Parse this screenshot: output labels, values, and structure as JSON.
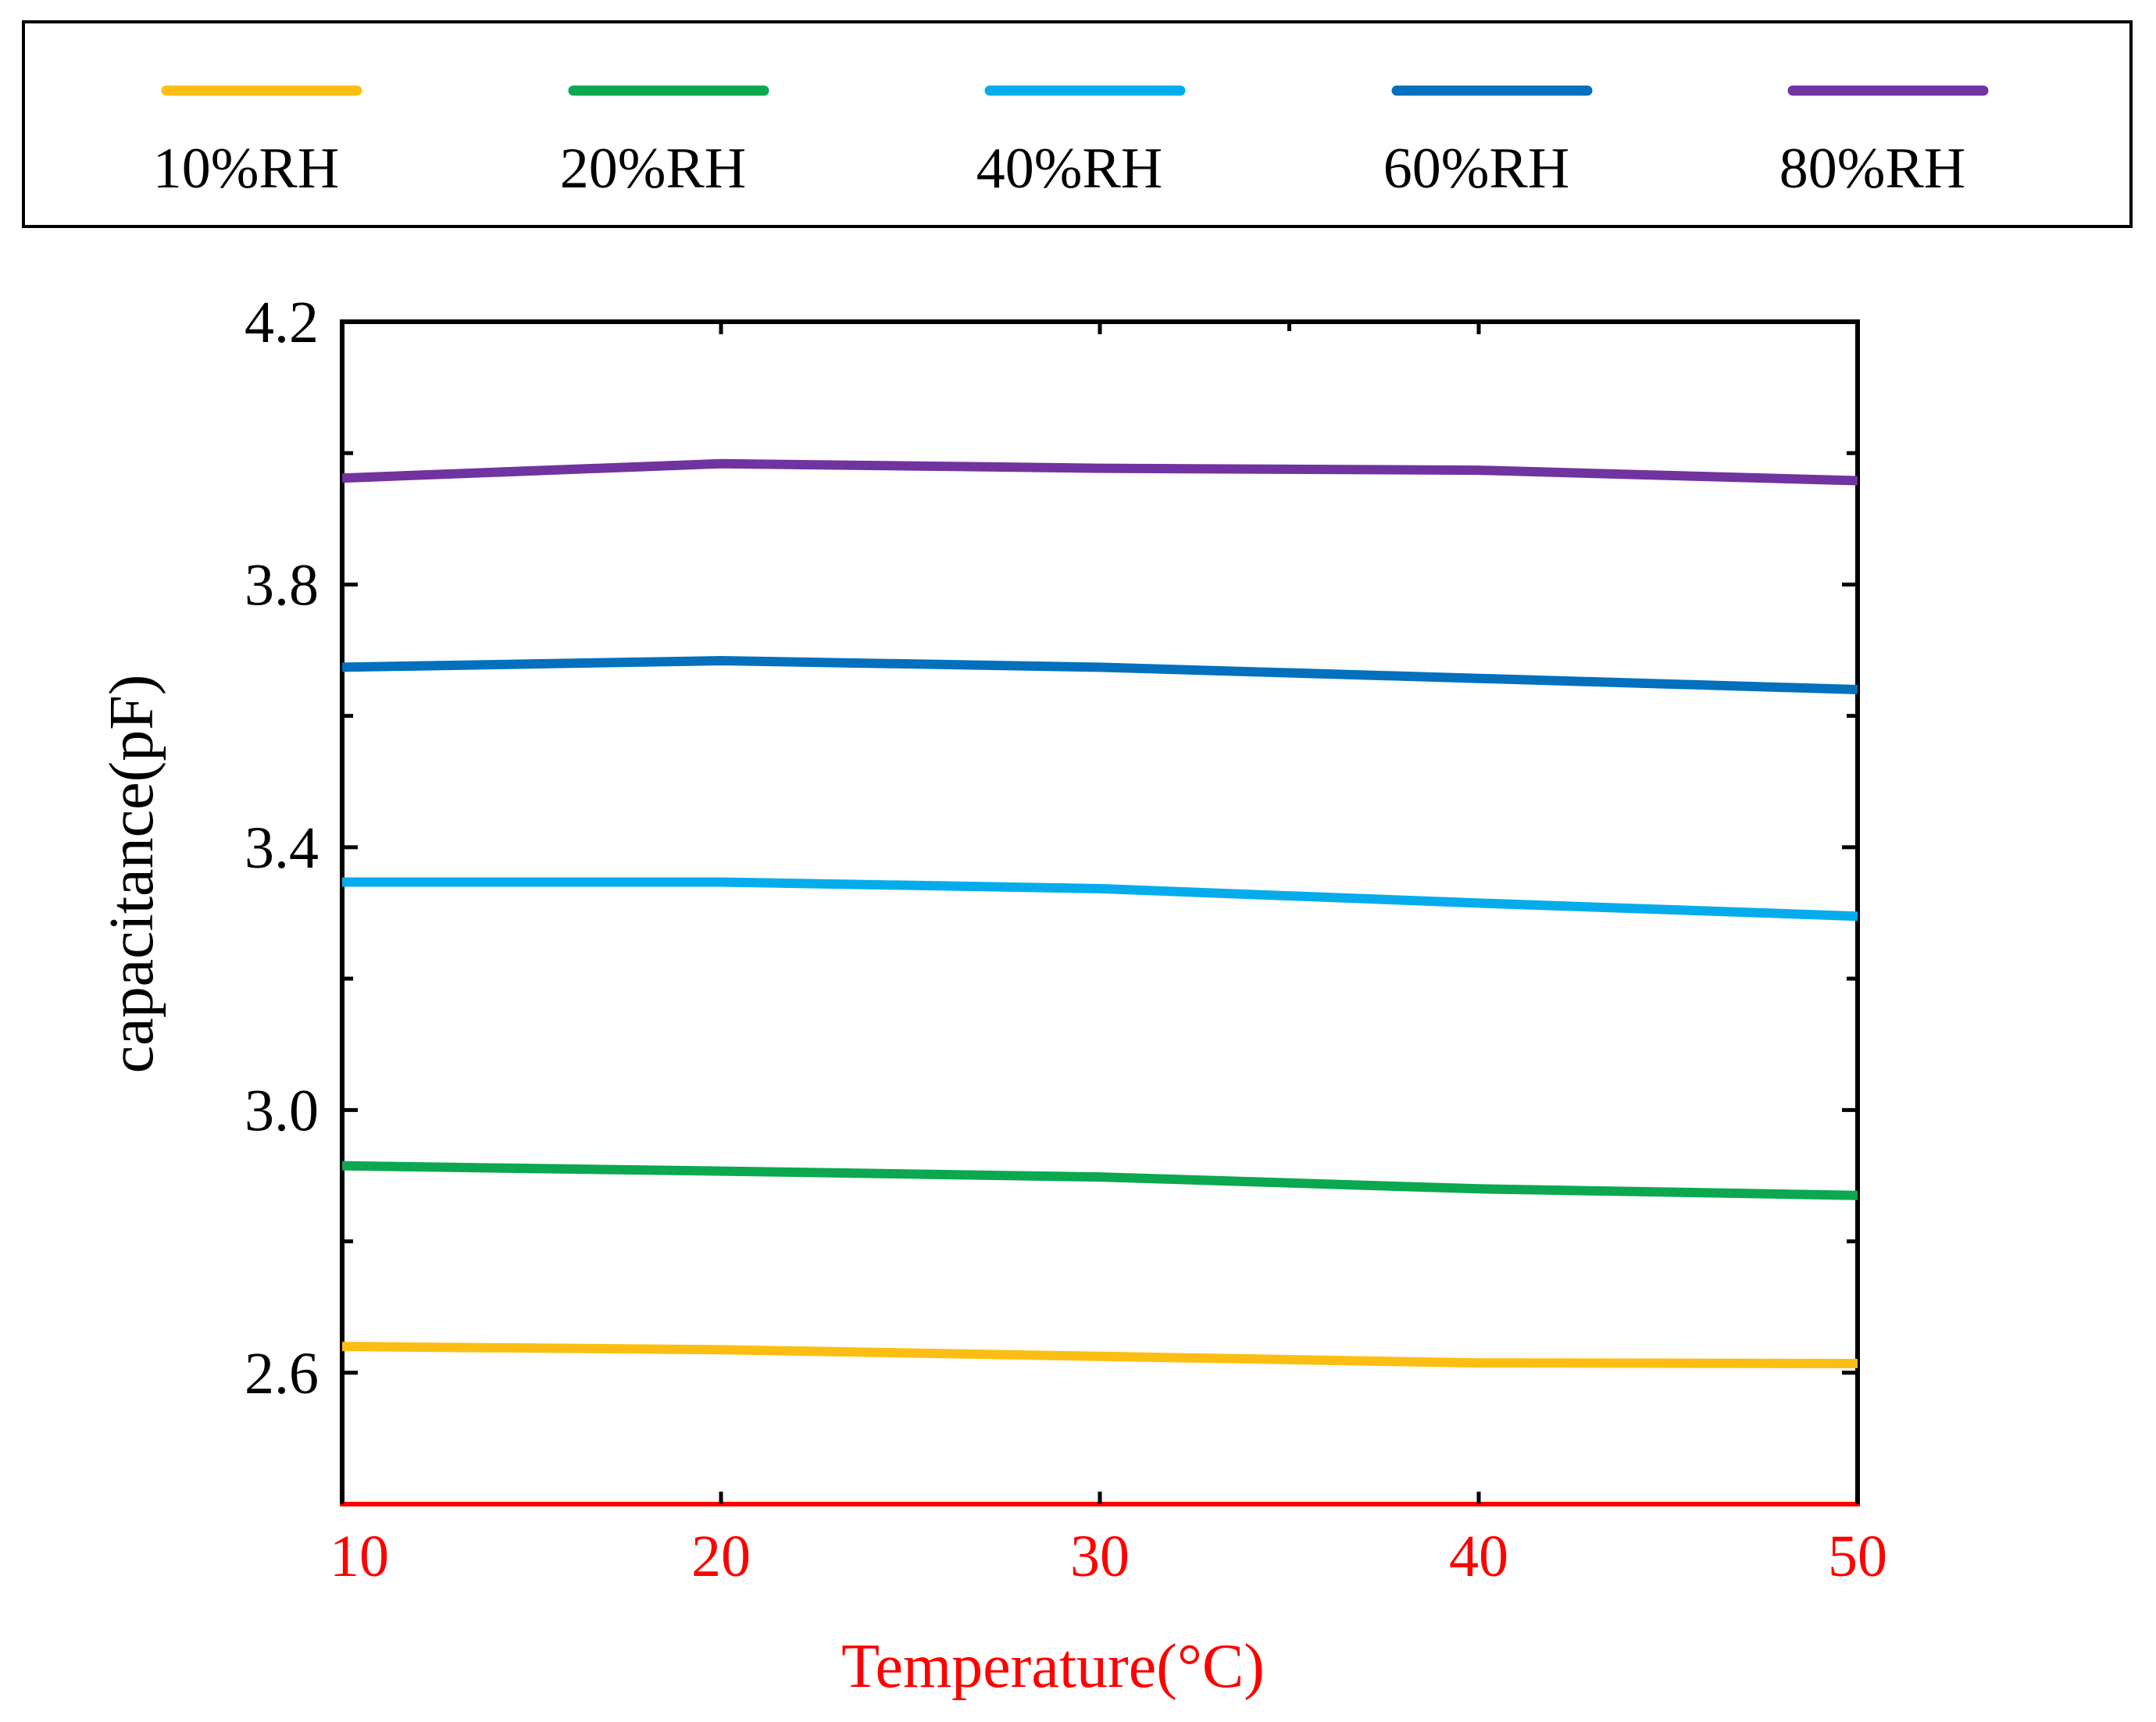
{
  "chart_data": {
    "type": "line",
    "title": "",
    "xlabel": "Temperature(°C)",
    "ylabel": "capacitance(pF)",
    "x": [
      10,
      20,
      30,
      40,
      50
    ],
    "xlim": [
      10,
      50
    ],
    "ylim": [
      2.4,
      4.2
    ],
    "x_ticks": [
      10,
      20,
      30,
      40,
      50
    ],
    "x_tick_labels": [
      "10",
      "20",
      "30",
      "40",
      "50"
    ],
    "y_ticks": [
      2.6,
      3.0,
      3.4,
      3.8,
      4.2
    ],
    "y_tick_labels": [
      "2.6",
      "3.0",
      "3.4",
      "3.8",
      "4.2"
    ],
    "y_minor_ticks": [
      2.8,
      3.2,
      3.6,
      4.0
    ],
    "x_minor_ticks": [
      35
    ],
    "grid": false,
    "legend_position": "top",
    "series": [
      {
        "name": "10%RH",
        "color": "#FDBE14",
        "values": [
          2.64,
          2.635,
          2.625,
          2.615,
          2.614
        ]
      },
      {
        "name": "20%RH",
        "color": "#0BA84F",
        "values": [
          2.915,
          2.907,
          2.898,
          2.88,
          2.87
        ]
      },
      {
        "name": "40%RH",
        "color": "#05ACEC",
        "values": [
          3.347,
          3.347,
          3.337,
          3.315,
          3.295
        ]
      },
      {
        "name": "60%RH",
        "color": "#0270BD",
        "values": [
          3.674,
          3.684,
          3.674,
          3.657,
          3.64
        ]
      },
      {
        "name": "80%RH",
        "color": "#7133A0",
        "values": [
          3.962,
          3.984,
          3.977,
          3.974,
          3.958
        ]
      }
    ],
    "axis_color": "#000000",
    "x_axis_color": "#FF0000"
  }
}
